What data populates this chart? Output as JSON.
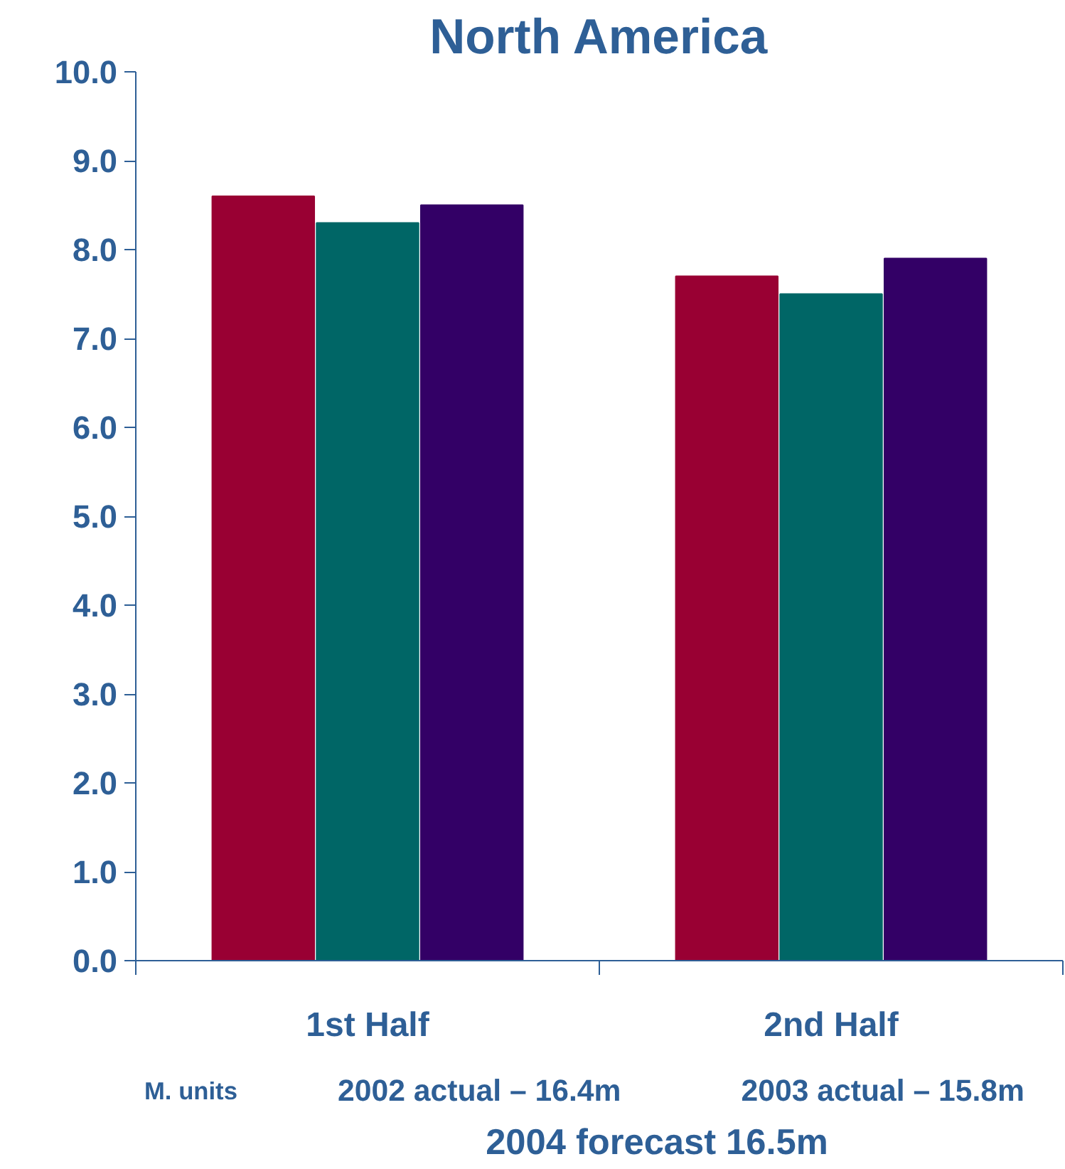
{
  "chart_data": {
    "type": "bar",
    "title": "North America",
    "categories": [
      "1st Half",
      "2nd Half"
    ],
    "series": [
      {
        "color": "#990033",
        "values": [
          8.6,
          7.7
        ]
      },
      {
        "color": "#006666",
        "values": [
          8.3,
          7.5
        ]
      },
      {
        "color": "#330066",
        "values": [
          8.5,
          7.9
        ]
      }
    ],
    "ylim": [
      0,
      10
    ],
    "yticks": [
      {
        "value": 0,
        "label": "0.0"
      },
      {
        "value": 1,
        "label": "1.0"
      },
      {
        "value": 2,
        "label": "2.0"
      },
      {
        "value": 3,
        "label": "3.0"
      },
      {
        "value": 4,
        "label": "4.0"
      },
      {
        "value": 5,
        "label": "5.0"
      },
      {
        "value": 6,
        "label": "6.0"
      },
      {
        "value": 7,
        "label": "7.0"
      },
      {
        "value": 8,
        "label": "8.0"
      },
      {
        "value": 9,
        "label": "9.0"
      },
      {
        "value": 10,
        "label": "10.0"
      }
    ],
    "annotations": [
      "M. units",
      "2002 actual – 16.4m",
      "2003 actual – 15.8m",
      "2004 forecast 16.5m"
    ],
    "grid": false
  }
}
